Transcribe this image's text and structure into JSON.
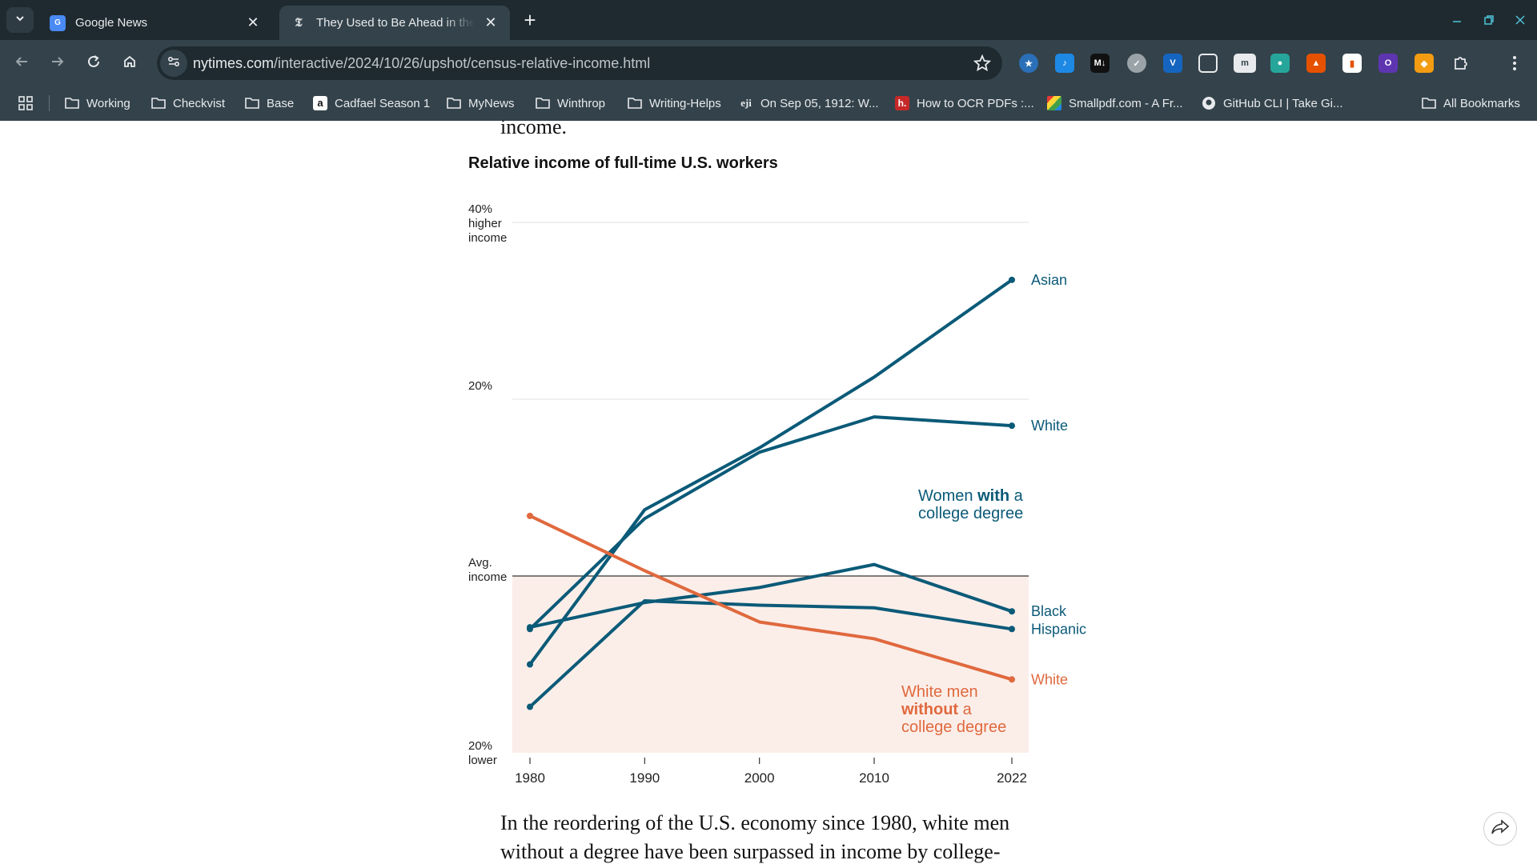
{
  "browser": {
    "tabs": [
      {
        "title": "Google News",
        "favicon": "google-news-icon"
      },
      {
        "title": "They Used to Be Ahead in the American Economy",
        "favicon": "nyt-icon"
      }
    ],
    "url_host": "nytimes.com",
    "url_path": "/interactive/2024/10/26/upshot/census-relative-income.html",
    "bookmarks": [
      {
        "label": "Working",
        "icon": "folder-icon"
      },
      {
        "label": "Checkvist",
        "icon": "folder-icon"
      },
      {
        "label": "Base",
        "icon": "folder-icon"
      },
      {
        "label": "Cadfael Season 1",
        "icon": "amazon-icon"
      },
      {
        "label": "MyNews",
        "icon": "folder-icon"
      },
      {
        "label": "Winthrop",
        "icon": "folder-icon"
      },
      {
        "label": "Writing-Helps",
        "icon": "folder-icon"
      },
      {
        "label": "On Sep 05, 1912: W...",
        "icon": "eji-icon"
      },
      {
        "label": "How to OCR PDFs :...",
        "icon": "h-icon"
      },
      {
        "label": "Smallpdf.com - A Fr...",
        "icon": "smallpdf-icon"
      },
      {
        "label": "GitHub CLI | Take Gi...",
        "icon": "github-icon"
      }
    ],
    "all_bookmarks": "All Bookmarks"
  },
  "article": {
    "text_above": "income.",
    "text_below_1": "In the reordering of the U.S. economy since 1980, white men",
    "text_below_2": "without a degree have been surpassed in income by college-"
  },
  "chart_data": {
    "type": "line",
    "title": "Relative income of full-time U.S. workers",
    "x": [
      1980,
      1990,
      2000,
      2010,
      2022
    ],
    "ylim": [
      -20,
      40
    ],
    "y_tick_labels": [
      {
        "value": 40,
        "lines": [
          "40%",
          "higher",
          "income"
        ]
      },
      {
        "value": 20,
        "lines": [
          "20%"
        ]
      },
      {
        "value": 0,
        "lines": [
          "Avg.",
          "income"
        ]
      },
      {
        "value": -20,
        "lines": [
          "20%",
          "lower"
        ]
      }
    ],
    "series": [
      {
        "name": "Asian",
        "group": "women-college",
        "values": [
          -10,
          7.5,
          14.5,
          22.5,
          33.5
        ]
      },
      {
        "name": "White",
        "group": "women-college",
        "values": [
          -6,
          6.5,
          14,
          18,
          17
        ]
      },
      {
        "name": "Black",
        "group": "women-college",
        "values": [
          -5.8,
          -3,
          -1.3,
          1.3,
          -4
        ]
      },
      {
        "name": "Hispanic",
        "group": "women-college",
        "values": [
          -14.8,
          -2.8,
          -3.3,
          -3.6,
          -6
        ]
      },
      {
        "name": "White",
        "group": "men-no-college",
        "values": [
          6.8,
          0.6,
          -5.2,
          -7.1,
          -11.7
        ]
      }
    ],
    "group_labels": {
      "women_college": {
        "line1_a": "Women ",
        "line1_b": "with",
        "line1_c": " a",
        "line2": "college degree"
      },
      "men_no_college": {
        "line1": "White men",
        "line2_a": "without",
        "line2_b": " a",
        "line3": "college degree"
      }
    },
    "colors": {
      "women_college": "#0b5a78",
      "men_no_college": "#e0693e",
      "below_avg_fill": "#fbeee9",
      "avg_line": "#333333",
      "grid": "#e2e2e2"
    },
    "grid": true
  }
}
